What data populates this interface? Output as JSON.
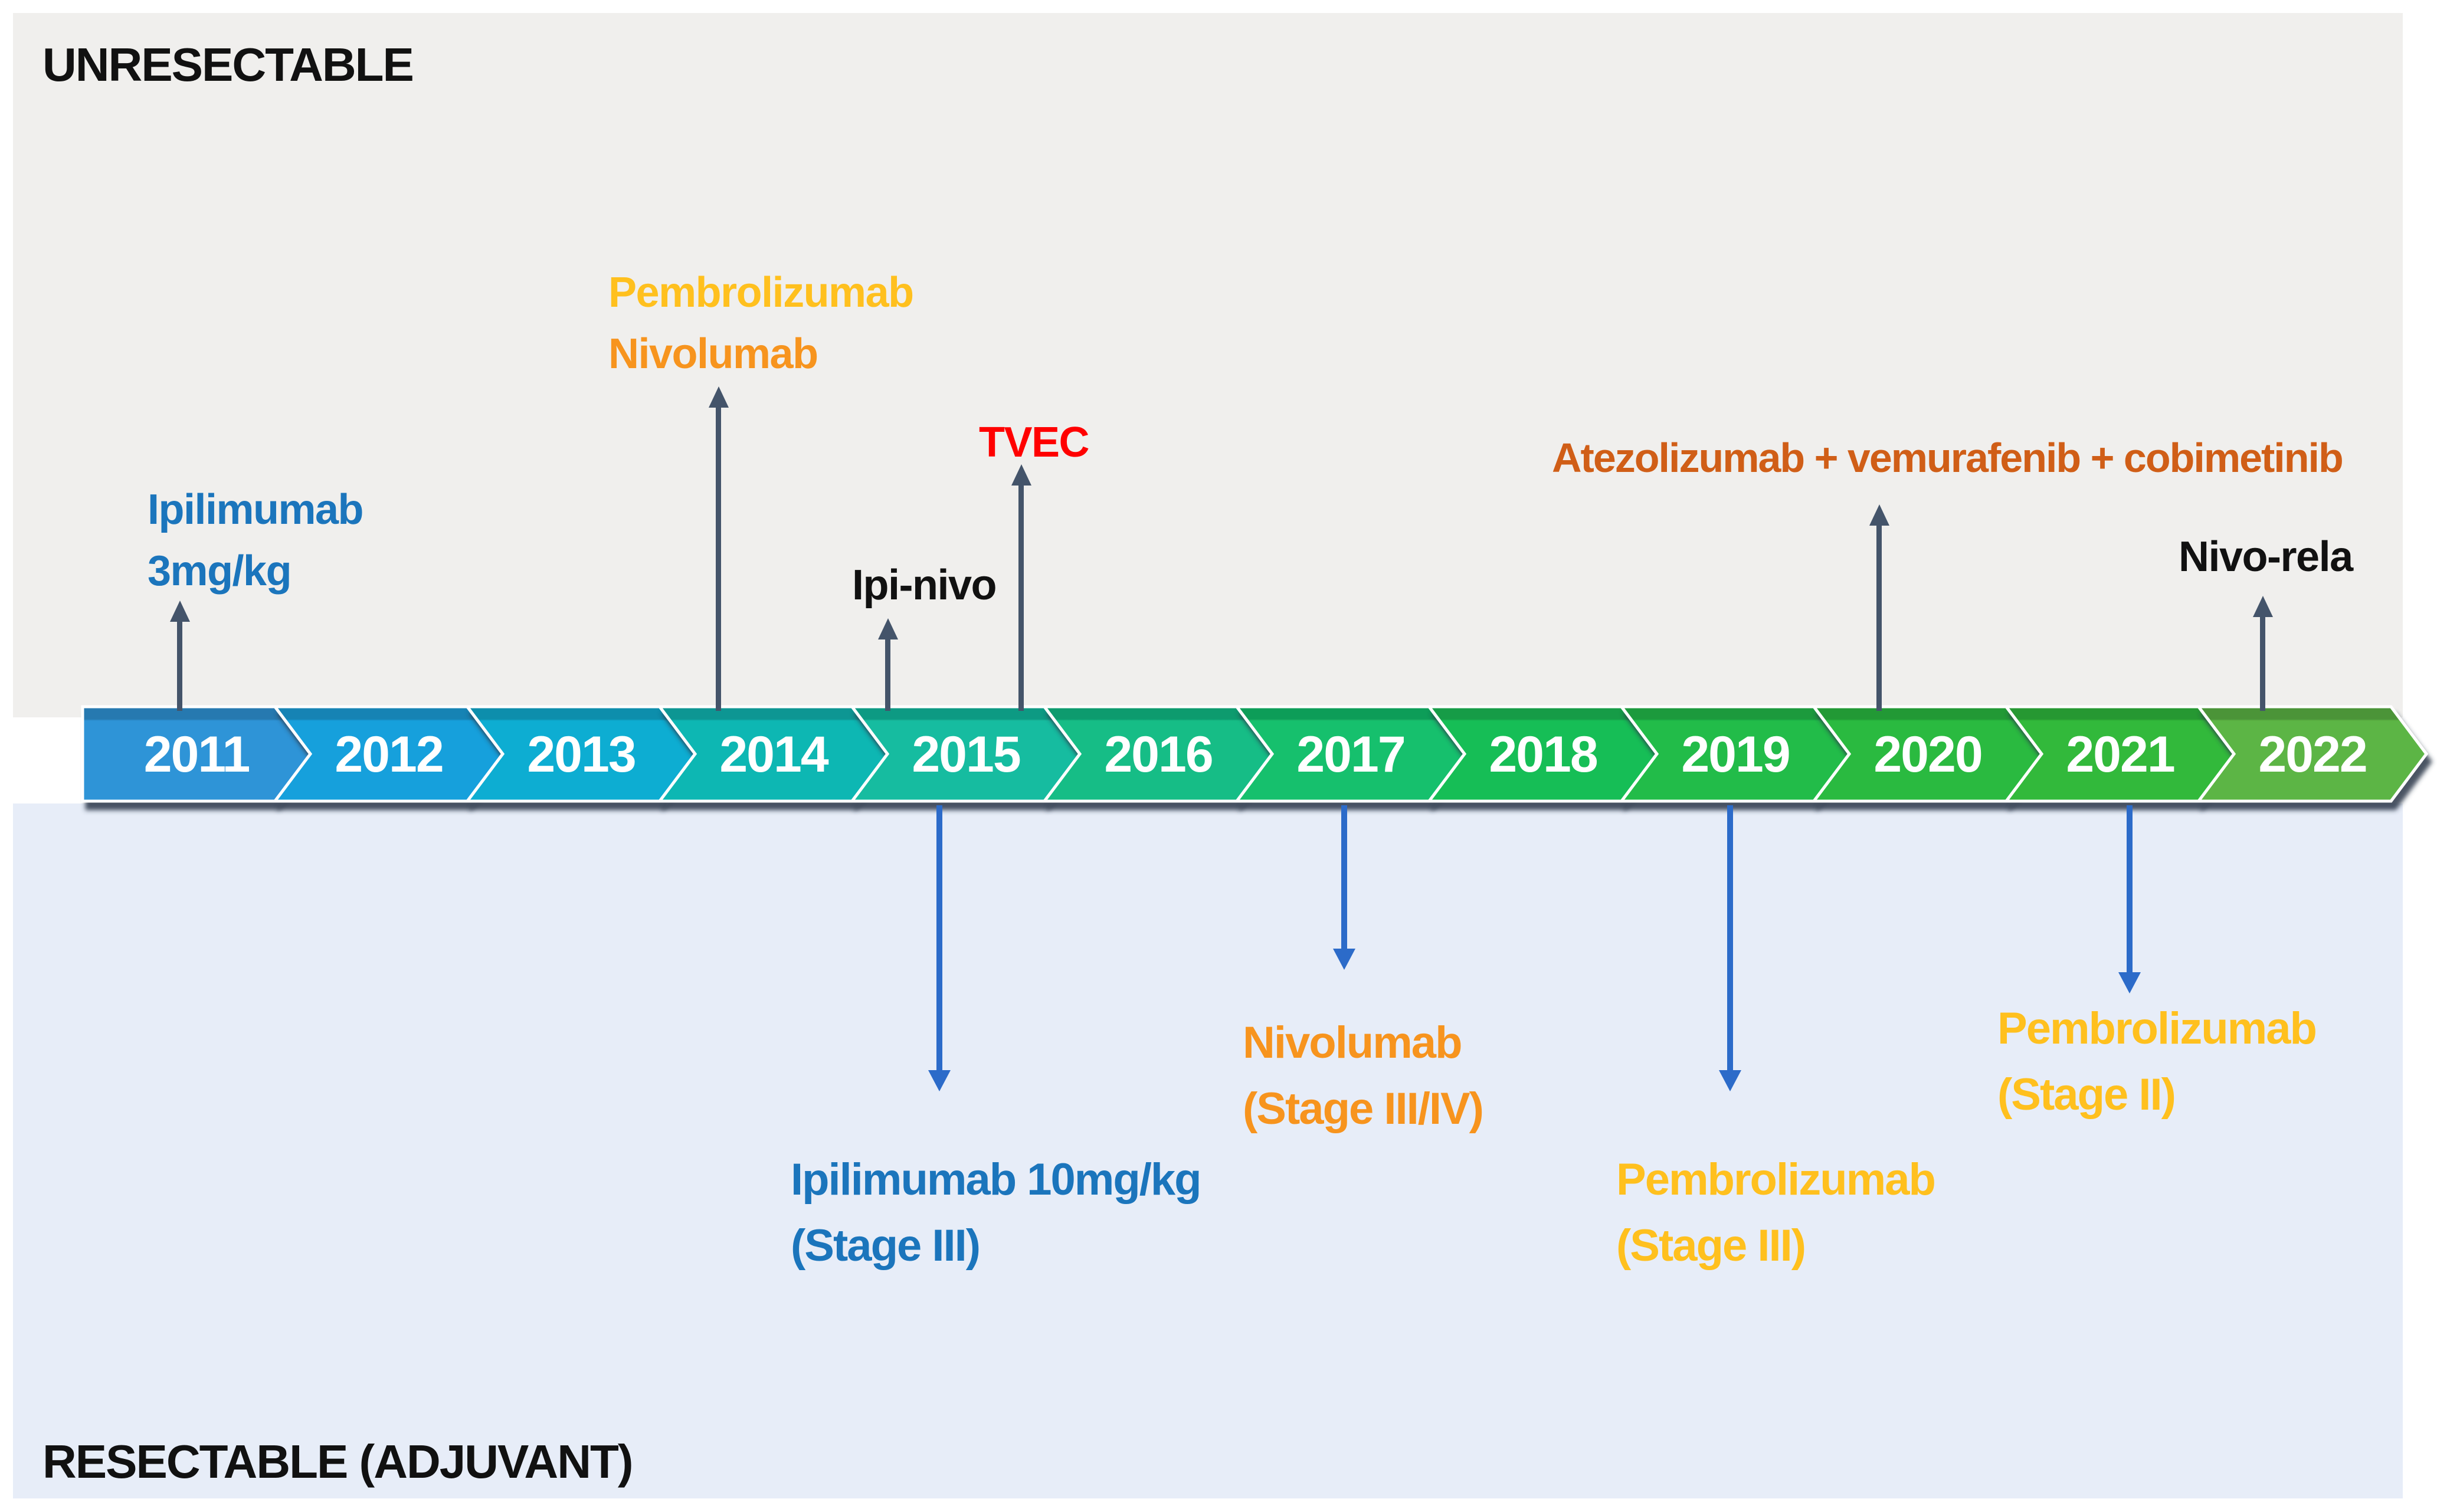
{
  "sections": {
    "top_label": "UNRESECTABLE",
    "bottom_label": "RESECTABLE (ADJUVANT)"
  },
  "timeline": {
    "years": [
      {
        "label": "2011",
        "color": "#2E94D7"
      },
      {
        "label": "2012",
        "color": "#17A0DC"
      },
      {
        "label": "2013",
        "color": "#10ADD2"
      },
      {
        "label": "2014",
        "color": "#0FB7B3"
      },
      {
        "label": "2015",
        "color": "#14BCA0"
      },
      {
        "label": "2016",
        "color": "#13BD86"
      },
      {
        "label": "2017",
        "color": "#15C06D"
      },
      {
        "label": "2018",
        "color": "#18BE57"
      },
      {
        "label": "2019",
        "color": "#20BC4A"
      },
      {
        "label": "2020",
        "color": "#29BA3F"
      },
      {
        "label": "2021",
        "color": "#31B93A"
      },
      {
        "label": "2022",
        "color": "#5CB544"
      }
    ]
  },
  "events_above": {
    "ipilimumab_3mg": {
      "line1": "Ipilimumab",
      "line2": "3mg/kg",
      "anchor_year": "2011"
    },
    "pembrolizumab_nivolumab": {
      "line1": "Pembrolizumab",
      "line2": "Nivolumab",
      "anchor_year": "2014"
    },
    "ipi_nivo": {
      "line1": "Ipi-nivo",
      "anchor_year": "2015"
    },
    "tvec": {
      "line1": "TVEC",
      "anchor_year": "2015"
    },
    "atezolizumab_combo": {
      "line1": "Atezolizumab + vemurafenib + cobimetinib",
      "anchor_year": "2020"
    },
    "nivo_rela": {
      "line1": "Nivo-rela",
      "anchor_year": "2022"
    }
  },
  "events_below": {
    "ipilimumab_10mg": {
      "line1": "Ipilimumab 10mg/kg",
      "line2": "(Stage III)",
      "anchor_year": "2015"
    },
    "nivolumab_stage_3_4": {
      "line1": "Nivolumab",
      "line2": "(Stage III/IV)",
      "anchor_year": "2017"
    },
    "pembrolizumab_stage_3": {
      "line1": "Pembrolizumab",
      "line2": "(Stage III)",
      "anchor_year": "2019"
    },
    "pembrolizumab_stage_2": {
      "line1": "Pembrolizumab",
      "line2": "(Stage II)",
      "anchor_year": "2021"
    }
  },
  "colors": {
    "panel_gray": "#F0EFED",
    "panel_blue": "#E7EDF8",
    "slate_arrow": "#44546A",
    "royal_arrow": "#2C6BC9",
    "label_blue": "#1B75BC",
    "label_gold": "#FFC01E",
    "label_orange": "#F7941E",
    "label_dark_orange": "#D05E17",
    "label_red": "#FF0000",
    "label_ink": "#111111",
    "year_text": "#FFFFFF"
  }
}
